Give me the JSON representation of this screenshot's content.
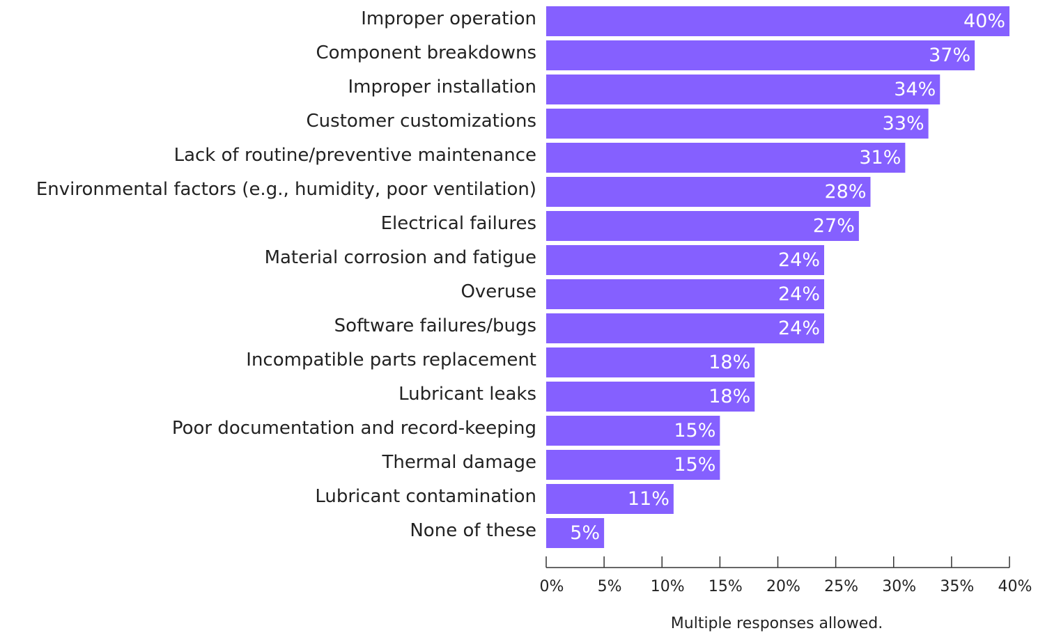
{
  "chart_data": {
    "type": "bar",
    "orientation": "horizontal",
    "categories": [
      "Improper operation",
      "Component breakdowns",
      "Improper installation",
      "Customer customizations",
      "Lack of routine/preventive maintenance",
      "Environmental factors (e.g., humidity, poor ventilation)",
      "Electrical failures",
      "Material corrosion and fatigue",
      "Overuse",
      "Software failures/bugs",
      "Incompatible parts replacement",
      "Lubricant leaks",
      "Poor documentation and record-keeping",
      "Thermal damage",
      "Lubricant contamination",
      "None of these"
    ],
    "values": [
      40,
      37,
      34,
      33,
      31,
      28,
      27,
      24,
      24,
      24,
      18,
      18,
      15,
      15,
      11,
      5
    ],
    "value_labels": [
      "40%",
      "37%",
      "34%",
      "33%",
      "31%",
      "28%",
      "27%",
      "24%",
      "24%",
      "24%",
      "18%",
      "18%",
      "15%",
      "15%",
      "11%",
      "5%"
    ],
    "color": "#8560ff",
    "xlim": [
      0,
      40
    ],
    "xticks": [
      {
        "value": 0,
        "label": "0%"
      },
      {
        "value": 5,
        "label": "5%"
      },
      {
        "value": 10,
        "label": "10%"
      },
      {
        "value": 15,
        "label": "15%"
      },
      {
        "value": 20,
        "label": "20%"
      },
      {
        "value": 25,
        "label": "25%"
      },
      {
        "value": 30,
        "label": "30%"
      },
      {
        "value": 35,
        "label": "35%"
      },
      {
        "value": 40,
        "label": "40%"
      }
    ],
    "annotation": "Multiple responses allowed."
  }
}
